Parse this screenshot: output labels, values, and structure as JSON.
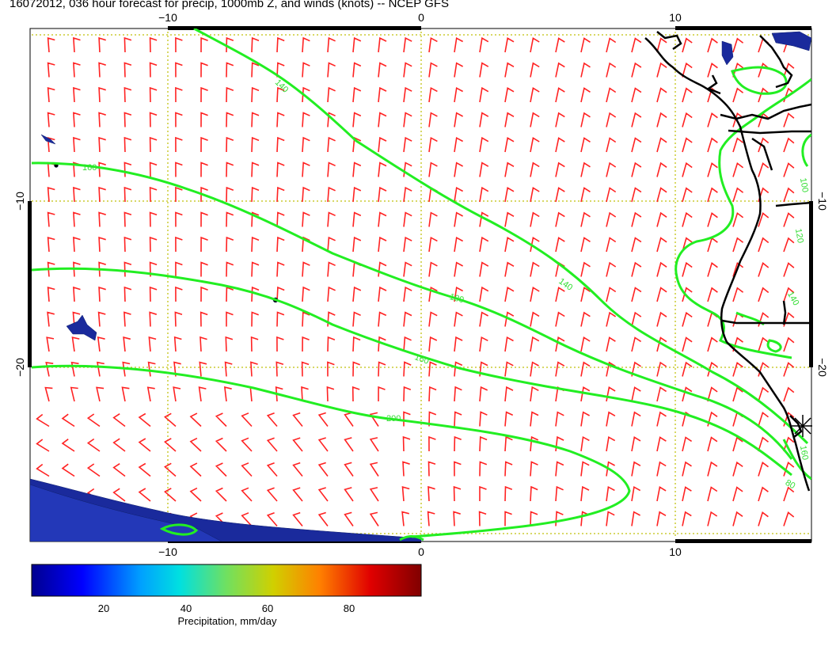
{
  "title": "16072012, 036 hour forecast for precip, 1000mb Z, and winds (knots) -- NCEP GFS",
  "axes": {
    "x_ticks": [
      "−10",
      "0",
      "10"
    ],
    "y_ticks": [
      "−10",
      "−20"
    ]
  },
  "contours": {
    "labels": [
      "140",
      "160",
      "140",
      "180",
      "160",
      "200",
      "80",
      "100",
      "120",
      "140",
      "160"
    ]
  },
  "colorbar": {
    "ticks": [
      "20",
      "40",
      "60",
      "80"
    ],
    "label": "Precipitation, mm/day"
  },
  "colors": {
    "contour": "#22ee22",
    "wind": "#ff2222",
    "coast": "#000000",
    "grid": "#cccc33",
    "precip": "#1a2a9c"
  }
}
